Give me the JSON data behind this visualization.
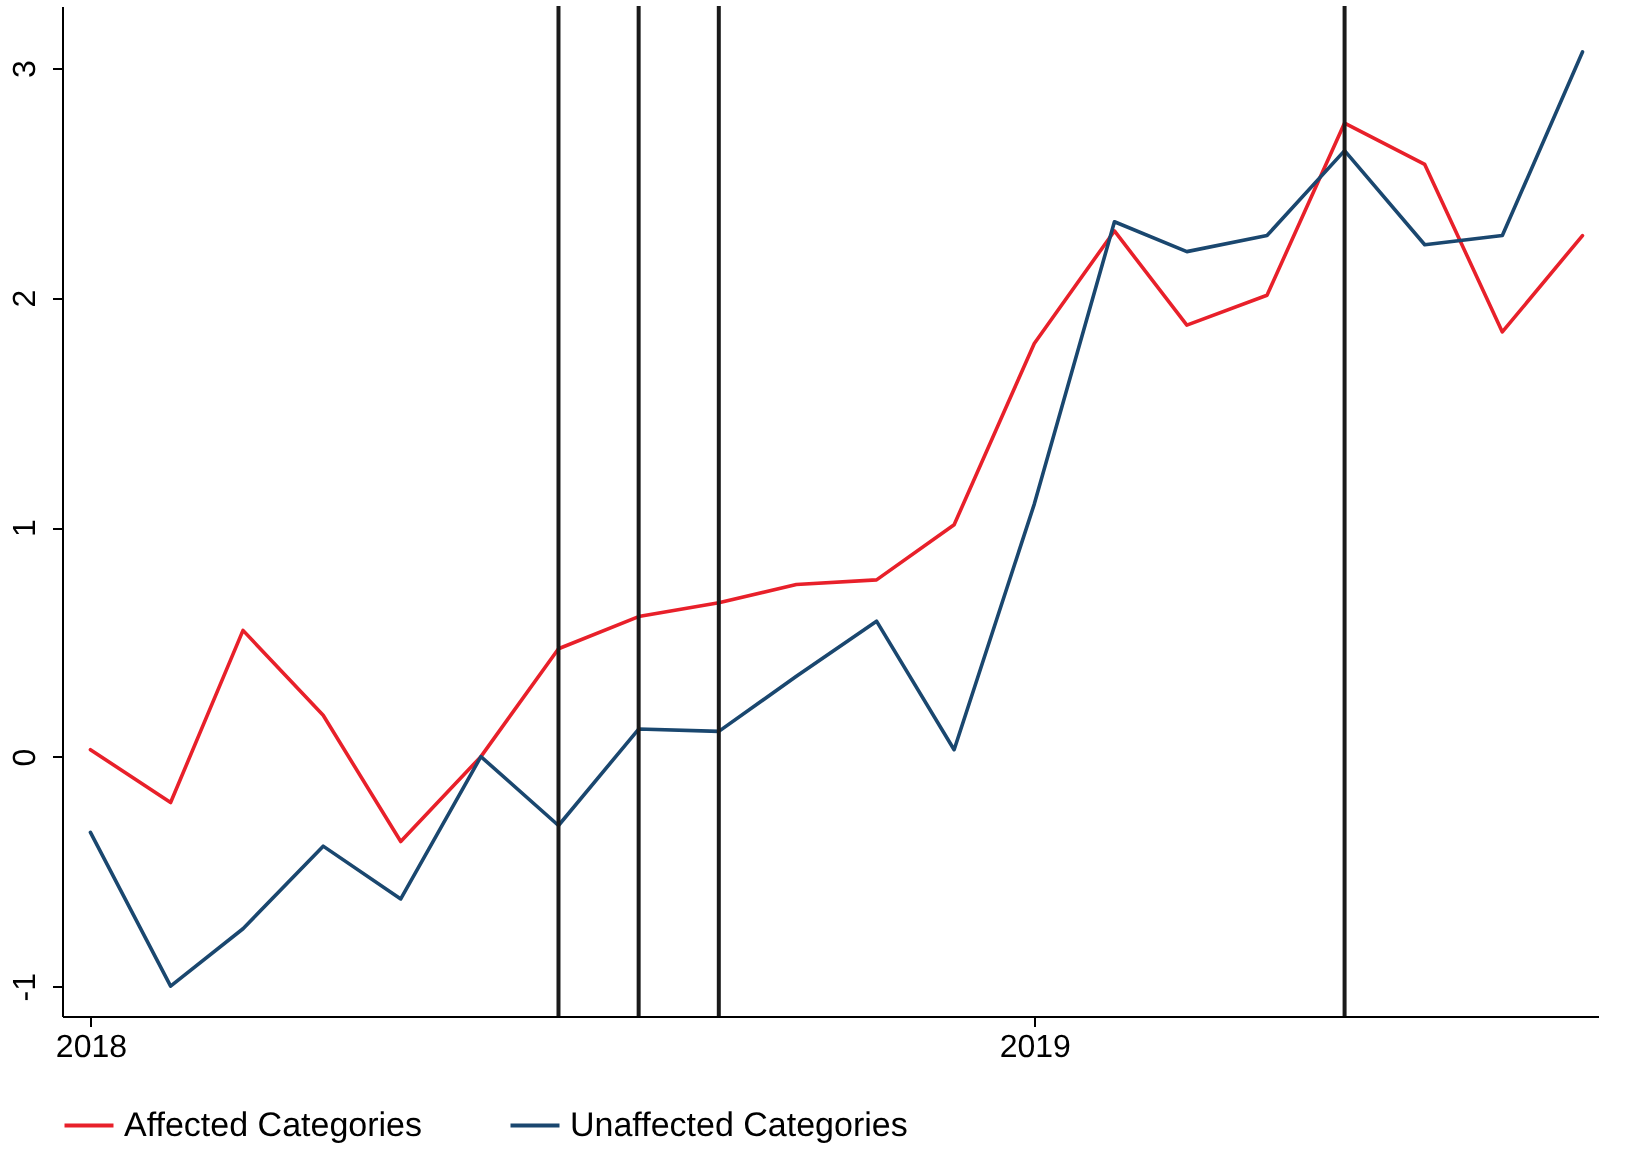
{
  "chart_data": {
    "type": "line",
    "x": [
      "2018-01",
      "2018-02",
      "2018-03",
      "2018-04",
      "2018-05",
      "2018-06",
      "2018-07",
      "2018-08",
      "2018-09",
      "2018-10",
      "2018-11",
      "2018-12",
      "2019-01",
      "2019-02",
      "2019-03",
      "2019-04",
      "2019-05",
      "2019-06",
      "2019-07",
      "2019-08"
    ],
    "series": [
      {
        "name": "Affected Categories",
        "color": "#e8202a",
        "values": [
          0.03,
          -0.2,
          0.55,
          0.18,
          -0.37,
          0,
          0.47,
          0.61,
          0.67,
          0.75,
          0.77,
          1.01,
          1.8,
          2.29,
          1.88,
          2.01,
          2.76,
          2.58,
          1.85,
          2.27
        ]
      },
      {
        "name": "Unaffected Categories",
        "color": "#1a476f",
        "values": [
          -0.33,
          -1.0,
          -0.75,
          -0.39,
          -0.62,
          0,
          -0.3,
          0.12,
          0.11,
          0.35,
          0.59,
          0.03,
          1.1,
          2.33,
          2.2,
          2.27,
          2.64,
          2.23,
          2.27,
          3.07
        ]
      }
    ],
    "xlim": [
      "2017-12-21",
      "2019-08-07"
    ],
    "xticks": [
      {
        "value": "2018-01",
        "label": "2018"
      },
      {
        "value": "2019-01",
        "label": "2019"
      }
    ],
    "ylim": [
      -1.13,
      3.27
    ],
    "yticks": [
      -1,
      0,
      1,
      2,
      3
    ],
    "ref_lines": [
      {
        "axis": "x",
        "value": "2018-07",
        "color": "#1a1a1a"
      },
      {
        "axis": "x",
        "value": "2018-08",
        "color": "#1a1a1a"
      },
      {
        "axis": "x",
        "value": "2018-09",
        "color": "#1a1a1a"
      },
      {
        "axis": "x",
        "value": "2019-05",
        "color": "#1a1a1a"
      }
    ],
    "grid": false,
    "legend": "bottom",
    "marker": "none",
    "line_style": "solid"
  }
}
